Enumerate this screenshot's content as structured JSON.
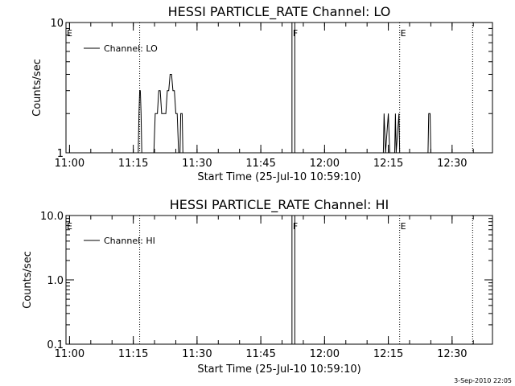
{
  "chart_data": [
    {
      "type": "line",
      "title": "HESSI PARTICLE_RATE Channel: LO",
      "xlabel": "Start Time (25-Jul-10 10:59:10)",
      "ylabel": "Counts/sec",
      "yscale": "log",
      "ylim": [
        1,
        10
      ],
      "yticks": [
        "1",
        "10"
      ],
      "xlim": [
        "10:59:10",
        "12:39:30"
      ],
      "xticks": [
        "11:00",
        "11:15",
        "11:30",
        "11:45",
        "12:00",
        "12:15",
        "12:30"
      ],
      "legend": {
        "position": "top-left",
        "entries": [
          "Channel: LO"
        ]
      },
      "markers": [
        {
          "label": "E",
          "time": "10:59:10",
          "style": "dotted"
        },
        {
          "label": "",
          "time": "11:16:30",
          "style": "dotted"
        },
        {
          "label": "F",
          "time": "11:52:20",
          "style": "solid"
        },
        {
          "label": "F",
          "time": "11:53:00",
          "style": "solid"
        },
        {
          "label": "E",
          "time": "12:17:40",
          "style": "dotted"
        },
        {
          "label": "",
          "time": "12:34:50",
          "style": "dotted"
        }
      ],
      "series": [
        {
          "name": "Channel: LO",
          "segments": [
            [
              [
                "11:16:10",
                1
              ],
              [
                "11:16:20",
                2
              ],
              [
                "11:16:30",
                3
              ],
              [
                "11:16:40",
                3
              ],
              [
                "11:16:50",
                2
              ],
              [
                "11:17:00",
                1
              ]
            ],
            [
              [
                "11:19:50",
                1
              ],
              [
                "11:20:10",
                2
              ],
              [
                "11:20:40",
                2
              ],
              [
                "11:21:00",
                3
              ],
              [
                "11:21:20",
                3
              ],
              [
                "11:21:40",
                2
              ],
              [
                "11:22:40",
                2
              ],
              [
                "11:23:00",
                3
              ],
              [
                "11:23:20",
                3
              ],
              [
                "11:23:40",
                4
              ],
              [
                "11:24:00",
                4
              ],
              [
                "11:24:20",
                3
              ],
              [
                "11:24:40",
                3
              ],
              [
                "11:25:00",
                2
              ],
              [
                "11:25:20",
                2
              ],
              [
                "11:25:40",
                1
              ]
            ],
            [
              [
                "11:26:00",
                1
              ],
              [
                "11:26:10",
                2
              ],
              [
                "11:26:30",
                2
              ],
              [
                "11:26:40",
                1
              ]
            ],
            [
              [
                "12:13:50",
                1
              ],
              [
                "12:14:00",
                2
              ],
              [
                "12:14:20",
                1
              ],
              [
                "12:15:00",
                2
              ],
              [
                "12:15:20",
                1
              ]
            ],
            [
              [
                "12:16:30",
                1
              ],
              [
                "12:16:40",
                2
              ],
              [
                "12:16:50",
                1
              ],
              [
                "12:17:30",
                2
              ],
              [
                "12:17:40",
                1
              ]
            ],
            [
              [
                "12:24:20",
                1
              ],
              [
                "12:24:30",
                2
              ],
              [
                "12:24:50",
                2
              ],
              [
                "12:25:00",
                1
              ]
            ]
          ]
        }
      ]
    },
    {
      "type": "line",
      "title": "HESSI PARTICLE_RATE Channel: HI",
      "xlabel": "Start Time (25-Jul-10 10:59:10)",
      "ylabel": "Counts/sec",
      "yscale": "log",
      "ylim": [
        0.1,
        10
      ],
      "yticks": [
        "0.1",
        "1.0",
        "10.0"
      ],
      "xlim": [
        "10:59:10",
        "12:39:30"
      ],
      "xticks": [
        "11:00",
        "11:15",
        "11:30",
        "11:45",
        "12:00",
        "12:15",
        "12:30"
      ],
      "legend": {
        "position": "top-left",
        "entries": [
          "Channel: HI"
        ]
      },
      "markers": [
        {
          "label": "E",
          "time": "10:59:10",
          "style": "dotted"
        },
        {
          "label": "",
          "time": "11:16:30",
          "style": "dotted"
        },
        {
          "label": "F",
          "time": "11:52:20",
          "style": "solid"
        },
        {
          "label": "F",
          "time": "11:53:00",
          "style": "solid"
        },
        {
          "label": "E",
          "time": "12:17:40",
          "style": "dotted"
        },
        {
          "label": "",
          "time": "12:34:50",
          "style": "dotted"
        }
      ],
      "series": [
        {
          "name": "Channel: HI",
          "segments": []
        }
      ]
    }
  ],
  "footer": {
    "stamp": "3-Sep-2010 22:05"
  }
}
